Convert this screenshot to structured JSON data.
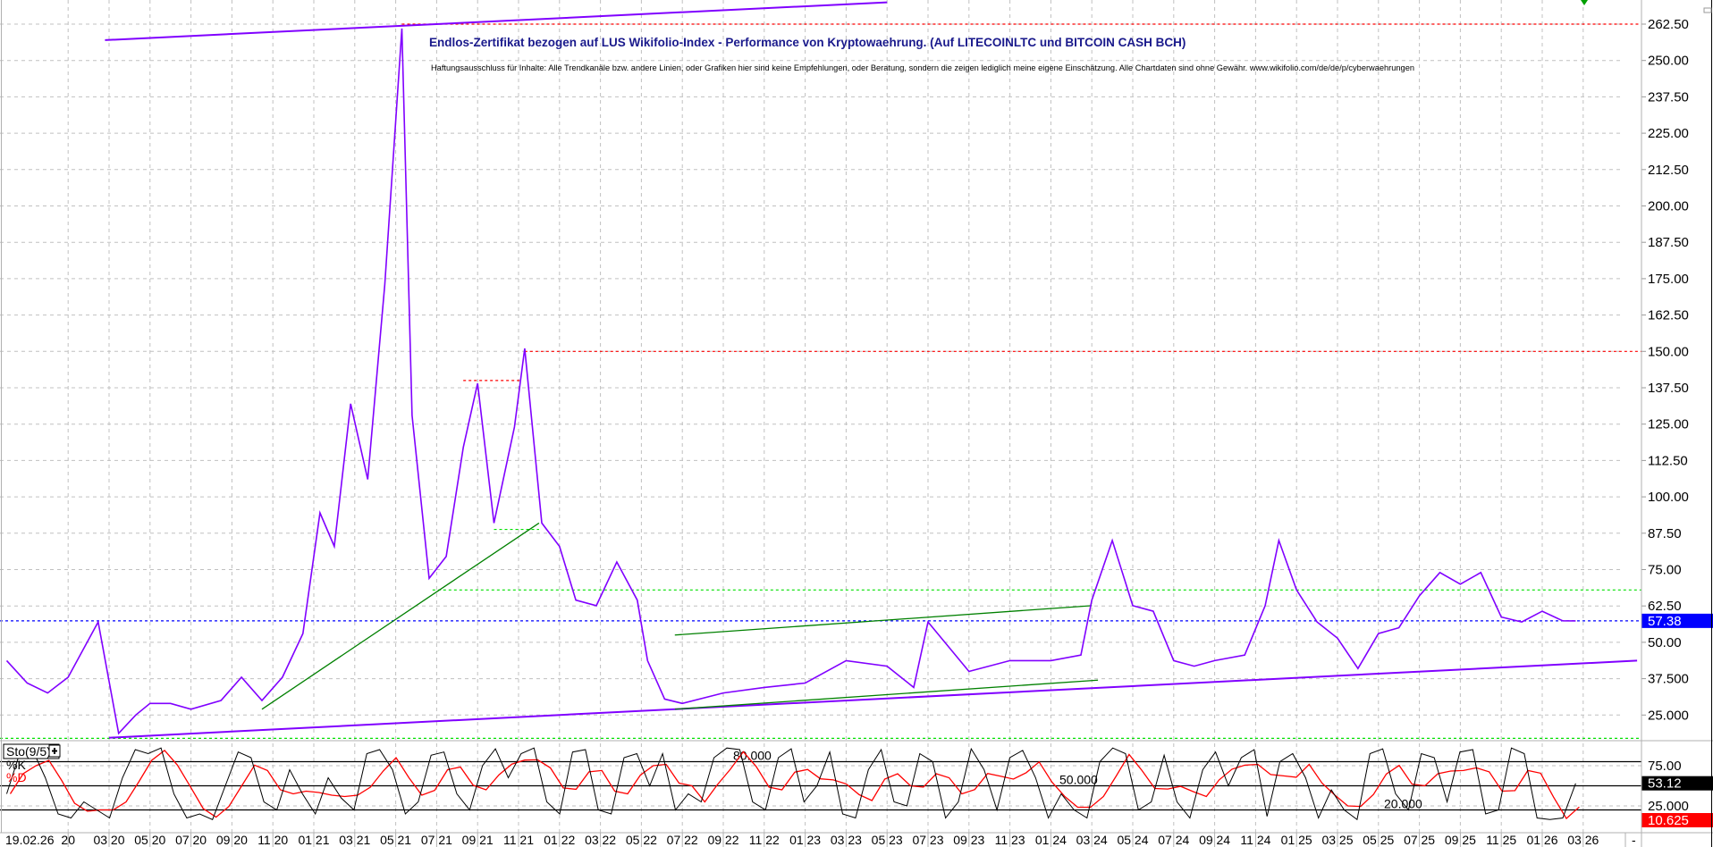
{
  "chart_data": {
    "type": "line",
    "title": "Endlos-Zertifikat bezogen auf LUS Wikifolio-Index - Performance von Kryptowaehrung. (Auf LITECOINLTC und BITCOIN CASH BCH)",
    "subtitle": "Haftungsausschluss für Inhalte: Alle Trendkanäle bzw. andere Linien, oder Grafiken hier sind keine Empfehlungen, oder Beratung, sondern die zeigen lediglich meine eigene Einschätzung. Alle Chartdaten sind ohne Gewähr. www.wikifolio.com/de/de/p/cyberwaehrungen",
    "colors": {
      "price": "#8000ff",
      "trend_purple": "#8000ff",
      "trend_green": "#008000",
      "level_red": "#ff0000",
      "level_green": "#00e000",
      "last_price": "#0000ff",
      "stoch_k": "#000000",
      "stoch_d": "#ff0000"
    },
    "ylim": [
      12,
      268
    ],
    "grid": true,
    "y_ticks": [
      {
        "value": 262.5,
        "label": "262.50"
      },
      {
        "value": 250,
        "label": "250.00"
      },
      {
        "value": 237.5,
        "label": "237.50"
      },
      {
        "value": 225,
        "label": "225.00"
      },
      {
        "value": 212.5,
        "label": "212.50"
      },
      {
        "value": 200,
        "label": "200.00"
      },
      {
        "value": 187.5,
        "label": "187.50"
      },
      {
        "value": 175,
        "label": "175.00"
      },
      {
        "value": 162.5,
        "label": "162.50"
      },
      {
        "value": 150,
        "label": "150.00"
      },
      {
        "value": 137.5,
        "label": "137.50"
      },
      {
        "value": 125,
        "label": "125.00"
      },
      {
        "value": 112.5,
        "label": "112.50"
      },
      {
        "value": 100,
        "label": "100.00"
      },
      {
        "value": 87.5,
        "label": "87.50"
      },
      {
        "value": 75,
        "label": "75.00"
      },
      {
        "value": 62.5,
        "label": "62.50"
      },
      {
        "value": 50,
        "label": "50.00"
      },
      {
        "value": 37.5,
        "label": "37.500"
      },
      {
        "value": 25,
        "label": "25.000"
      }
    ],
    "start_label": "19.02.26",
    "x_ticks": [
      "01/20",
      "03/20",
      "05/20",
      "07/20",
      "09/20",
      "11/20",
      "01/21",
      "03/21",
      "05/21",
      "07/21",
      "09/21",
      "11/21",
      "01/22",
      "03/22",
      "05/22",
      "07/22",
      "09/22",
      "11/22",
      "01/23",
      "03/23",
      "05/23",
      "07/23",
      "09/23",
      "11/23",
      "01/24",
      "03/24",
      "05/24",
      "07/24",
      "09/24",
      "11/24",
      "01/25",
      "03/25",
      "05/25",
      "07/25",
      "09/25",
      "11/25",
      "01/26",
      "03/26"
    ],
    "x_tick_display": [
      "20",
      "03 20",
      "05 20",
      "07 20",
      "09 20",
      "11 20",
      "01 21",
      "03 21",
      "05 21",
      "07 21",
      "09 21",
      "11 21",
      "01 22",
      "03 22",
      "05 22",
      "07 22",
      "09 22",
      "11 22",
      "01 23",
      "03 23",
      "05 23",
      "07 23",
      "09 23",
      "11 23",
      "01 24",
      "03 24",
      "05 24",
      "07 24",
      "09 24",
      "11 24",
      "01 25",
      "03 25",
      "05 25",
      "07 25",
      "09 25",
      "11 25",
      "01 26",
      "03 26"
    ],
    "price": [
      [
        "2019-10-01",
        43.7
      ],
      [
        "2019-11-01",
        36
      ],
      [
        "2019-12-01",
        32.6
      ],
      [
        "2020-01-01",
        38
      ],
      [
        "2020-02-15",
        57
      ],
      [
        "2020-03-15",
        18.7
      ],
      [
        "2020-04-10",
        25
      ],
      [
        "2020-05-01",
        29
      ],
      [
        "2020-06-01",
        29
      ],
      [
        "2020-07-01",
        27
      ],
      [
        "2020-08-15",
        30
      ],
      [
        "2020-09-15",
        38
      ],
      [
        "2020-10-15",
        30
      ],
      [
        "2020-11-15",
        38
      ],
      [
        "2020-12-15",
        53
      ],
      [
        "2021-01-10",
        94.5
      ],
      [
        "2021-02-01",
        83
      ],
      [
        "2021-02-25",
        132
      ],
      [
        "2021-03-20",
        106
      ],
      [
        "2021-04-15",
        173
      ],
      [
        "2021-05-10",
        261
      ],
      [
        "2021-05-25",
        128
      ],
      [
        "2021-06-20",
        72
      ],
      [
        "2021-07-15",
        79.5
      ],
      [
        "2021-08-10",
        117
      ],
      [
        "2021-09-01",
        139
      ],
      [
        "2021-09-25",
        91
      ],
      [
        "2021-10-25",
        124
      ],
      [
        "2021-11-10",
        151
      ],
      [
        "2021-12-05",
        91
      ],
      [
        "2022-01-01",
        83
      ],
      [
        "2022-01-25",
        64.5
      ],
      [
        "2022-02-25",
        62.6
      ],
      [
        "2022-03-25",
        77.6
      ],
      [
        "2022-04-25",
        64.5
      ],
      [
        "2022-05-10",
        43.7
      ],
      [
        "2022-06-05",
        30.5
      ],
      [
        "2022-07-01",
        29
      ],
      [
        "2022-09-01",
        32.6
      ],
      [
        "2022-11-01",
        34.5
      ],
      [
        "2023-01-01",
        36
      ],
      [
        "2023-03-01",
        43.7
      ],
      [
        "2023-05-01",
        41.8
      ],
      [
        "2023-06-10",
        34.5
      ],
      [
        "2023-07-01",
        57
      ],
      [
        "2023-09-01",
        40
      ],
      [
        "2023-11-01",
        43.7
      ],
      [
        "2024-01-01",
        43.7
      ],
      [
        "2024-02-15",
        45.6
      ],
      [
        "2024-03-01",
        64.5
      ],
      [
        "2024-04-01",
        85
      ],
      [
        "2024-05-01",
        62.6
      ],
      [
        "2024-06-01",
        60.7
      ],
      [
        "2024-07-01",
        43.7
      ],
      [
        "2024-08-01",
        41.8
      ],
      [
        "2024-09-01",
        43.7
      ],
      [
        "2024-10-15",
        45.6
      ],
      [
        "2024-11-15",
        62.6
      ],
      [
        "2024-12-05",
        85
      ],
      [
        "2025-01-01",
        68
      ],
      [
        "2025-02-01",
        57
      ],
      [
        "2025-03-01",
        51.4
      ],
      [
        "2025-04-01",
        41
      ],
      [
        "2025-05-01",
        53
      ],
      [
        "2025-06-01",
        55
      ],
      [
        "2025-07-01",
        66
      ],
      [
        "2025-08-01",
        74
      ],
      [
        "2025-09-01",
        70
      ],
      [
        "2025-10-01",
        74
      ],
      [
        "2025-11-01",
        58.7
      ],
      [
        "2025-12-01",
        57
      ],
      [
        "2026-01-01",
        60.7
      ],
      [
        "2026-02-01",
        57.4
      ],
      [
        "2026-02-20",
        57.38
      ]
    ],
    "trendlines": [
      {
        "color": "purple",
        "from": [
          "2020-03-01",
          17.2
        ],
        "to": [
          "2026-05-20",
          43.7
        ]
      },
      {
        "color": "purple",
        "from": [
          "2020-02-25",
          257
        ],
        "to": [
          "2023-05-01",
          270
        ]
      },
      {
        "color": "green",
        "from": [
          "2020-10-15",
          27
        ],
        "to": [
          "2021-12-01",
          91
        ]
      },
      {
        "color": "green",
        "from": [
          "2022-06-20",
          52.5
        ],
        "to": [
          "2024-03-01",
          62.6
        ]
      },
      {
        "color": "green",
        "from": [
          "2022-06-20",
          27
        ],
        "to": [
          "2024-03-10",
          37
        ]
      }
    ],
    "levels": [
      {
        "color": "red",
        "value": 262.5,
        "from": "2021-05-10"
      },
      {
        "color": "red",
        "value": 150,
        "from": "2021-11-10"
      },
      {
        "color": "red",
        "value": 140,
        "from": "2021-08-10",
        "to": "2021-11-05"
      },
      {
        "color": "green",
        "value": 68,
        "from": "2021-06-25"
      },
      {
        "color": "green",
        "value": 88.8,
        "from": "2021-09-25",
        "to": "2021-12-01"
      },
      {
        "color": "green",
        "value": 17
      },
      {
        "color": "blue",
        "value": 57.38
      }
    ],
    "last_price": "57.38",
    "stochastic": {
      "label": "Sto(9/5)",
      "k_label": "%K",
      "d_label": "%D",
      "ylim": [
        0,
        100
      ],
      "y_ticks": [
        {
          "value": 75,
          "label": "75.00"
        },
        {
          "value": 25,
          "label": "25.000"
        }
      ],
      "lines": [
        {
          "value": 80,
          "label": "80.000"
        },
        {
          "value": 50,
          "label": "50.000"
        },
        {
          "value": 20,
          "label": "20.000"
        }
      ],
      "k_value": "53.12",
      "d_value": "10.625",
      "k": [
        40,
        90,
        95,
        60,
        15,
        10,
        30,
        20,
        10,
        60,
        95,
        90,
        97,
        40,
        10,
        15,
        8,
        50,
        92,
        85,
        30,
        20,
        70,
        40,
        15,
        60,
        35,
        20,
        90,
        95,
        70,
        15,
        30,
        88,
        92,
        40,
        20,
        75,
        96,
        60,
        90,
        97,
        30,
        15,
        92,
        95,
        20,
        15,
        85,
        90,
        50,
        90,
        20,
        40,
        30,
        85,
        97,
        95,
        30,
        20,
        85,
        96,
        30,
        50,
        92,
        15,
        10,
        70,
        95,
        30,
        25,
        90,
        80,
        10,
        30,
        96,
        70,
        20,
        85,
        94,
        60,
        10,
        40,
        20,
        10,
        80,
        97,
        90,
        20,
        30,
        88,
        30,
        10,
        70,
        92,
        50,
        85,
        95,
        12,
        80,
        90,
        60,
        10,
        45,
        20,
        8,
        90,
        96,
        40,
        20,
        90,
        85,
        30,
        92,
        95,
        15,
        20,
        97,
        90,
        10,
        8,
        10,
        53
      ]
    }
  },
  "ui": {
    "collapse_button": "-"
  }
}
